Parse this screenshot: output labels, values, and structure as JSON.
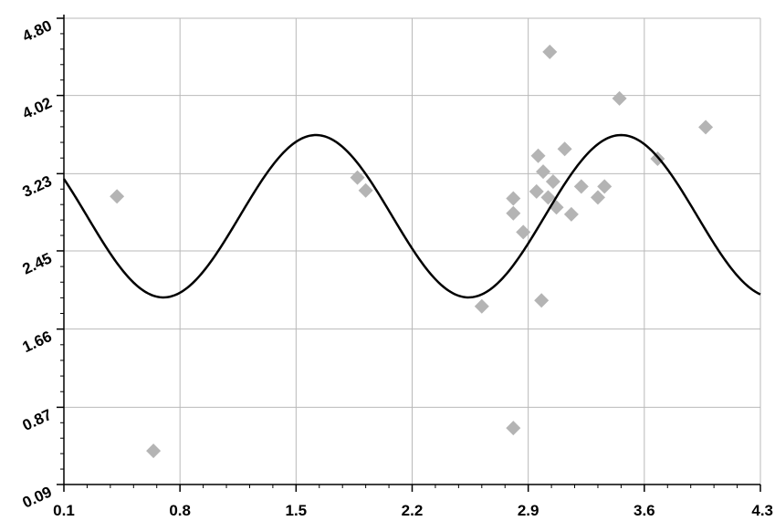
{
  "chart_data": {
    "type": "scatter",
    "title": "",
    "xlabel": "",
    "ylabel": "",
    "xlim": [
      0.1,
      4.3
    ],
    "ylim": [
      0.09,
      4.8
    ],
    "x_ticks": [
      "0.1",
      "0.8",
      "1.5",
      "2.2",
      "2.9",
      "3.6",
      "4.3"
    ],
    "y_ticks": [
      "0.09",
      "0.87",
      "1.66",
      "2.45",
      "3.23",
      "4.02",
      "4.80"
    ],
    "grid": true,
    "colors": {
      "points": "#b4b4b4",
      "curve": "#000000",
      "grid": "#b9b9b9",
      "axis": "#000000"
    },
    "scatter_points": [
      {
        "x": 0.42,
        "y": 3.0
      },
      {
        "x": 0.64,
        "y": 0.43
      },
      {
        "x": 1.87,
        "y": 3.19
      },
      {
        "x": 1.92,
        "y": 3.06
      },
      {
        "x": 2.62,
        "y": 1.89
      },
      {
        "x": 2.81,
        "y": 0.66
      },
      {
        "x": 2.81,
        "y": 2.98
      },
      {
        "x": 2.81,
        "y": 2.83
      },
      {
        "x": 2.87,
        "y": 2.64
      },
      {
        "x": 2.95,
        "y": 3.05
      },
      {
        "x": 2.96,
        "y": 3.41
      },
      {
        "x": 2.98,
        "y": 1.95
      },
      {
        "x": 2.99,
        "y": 3.25
      },
      {
        "x": 3.02,
        "y": 2.99
      },
      {
        "x": 3.03,
        "y": 4.46
      },
      {
        "x": 3.05,
        "y": 3.15
      },
      {
        "x": 3.07,
        "y": 2.89
      },
      {
        "x": 3.12,
        "y": 3.48
      },
      {
        "x": 3.16,
        "y": 2.82
      },
      {
        "x": 3.22,
        "y": 3.1
      },
      {
        "x": 3.32,
        "y": 2.99
      },
      {
        "x": 3.36,
        "y": 3.1
      },
      {
        "x": 3.45,
        "y": 3.99
      },
      {
        "x": 3.68,
        "y": 3.38
      },
      {
        "x": 3.97,
        "y": 3.7
      }
    ],
    "curve": {
      "type": "line",
      "function": "sine",
      "center": 2.8,
      "amplitude": 0.82,
      "period": 1.84,
      "peak_x": 1.62,
      "x_range": [
        0.1,
        4.3
      ]
    }
  }
}
